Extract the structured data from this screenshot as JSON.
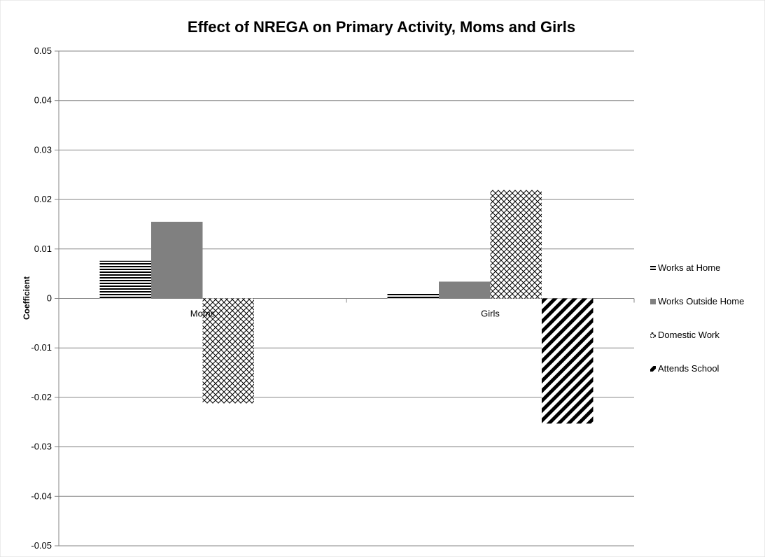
{
  "chart_data": {
    "type": "bar",
    "title": "Effect of NREGA on Primary Activity, Moms and Girls",
    "xlabel": "",
    "ylabel": "Coefficient",
    "categories": [
      "Moms",
      "Girls"
    ],
    "ylim": [
      -0.05,
      0.05
    ],
    "yticks": [
      "0.05",
      "0.04",
      "0.03",
      "0.02",
      "0.01",
      "0",
      "-0.01",
      "-0.02",
      "-0.03",
      "-0.04",
      "-0.05"
    ],
    "grid": true,
    "legend_position": "right",
    "series": [
      {
        "name": "Works at Home",
        "values": [
          0.0076,
          0.0012
        ],
        "pattern": "horizontal-lines"
      },
      {
        "name": "Works Outside Home",
        "values": [
          0.0155,
          0.0034
        ],
        "pattern": "solid-gray"
      },
      {
        "name": "Domestic Work",
        "values": [
          -0.0212,
          0.0219
        ],
        "pattern": "crosshatch"
      },
      {
        "name": "Attends School",
        "values": [
          0.0,
          -0.0253
        ],
        "pattern": "diagonal-stripes"
      }
    ],
    "colors": {
      "gridline": "#868686",
      "solid": "#808080",
      "pattern": "#000000"
    }
  }
}
